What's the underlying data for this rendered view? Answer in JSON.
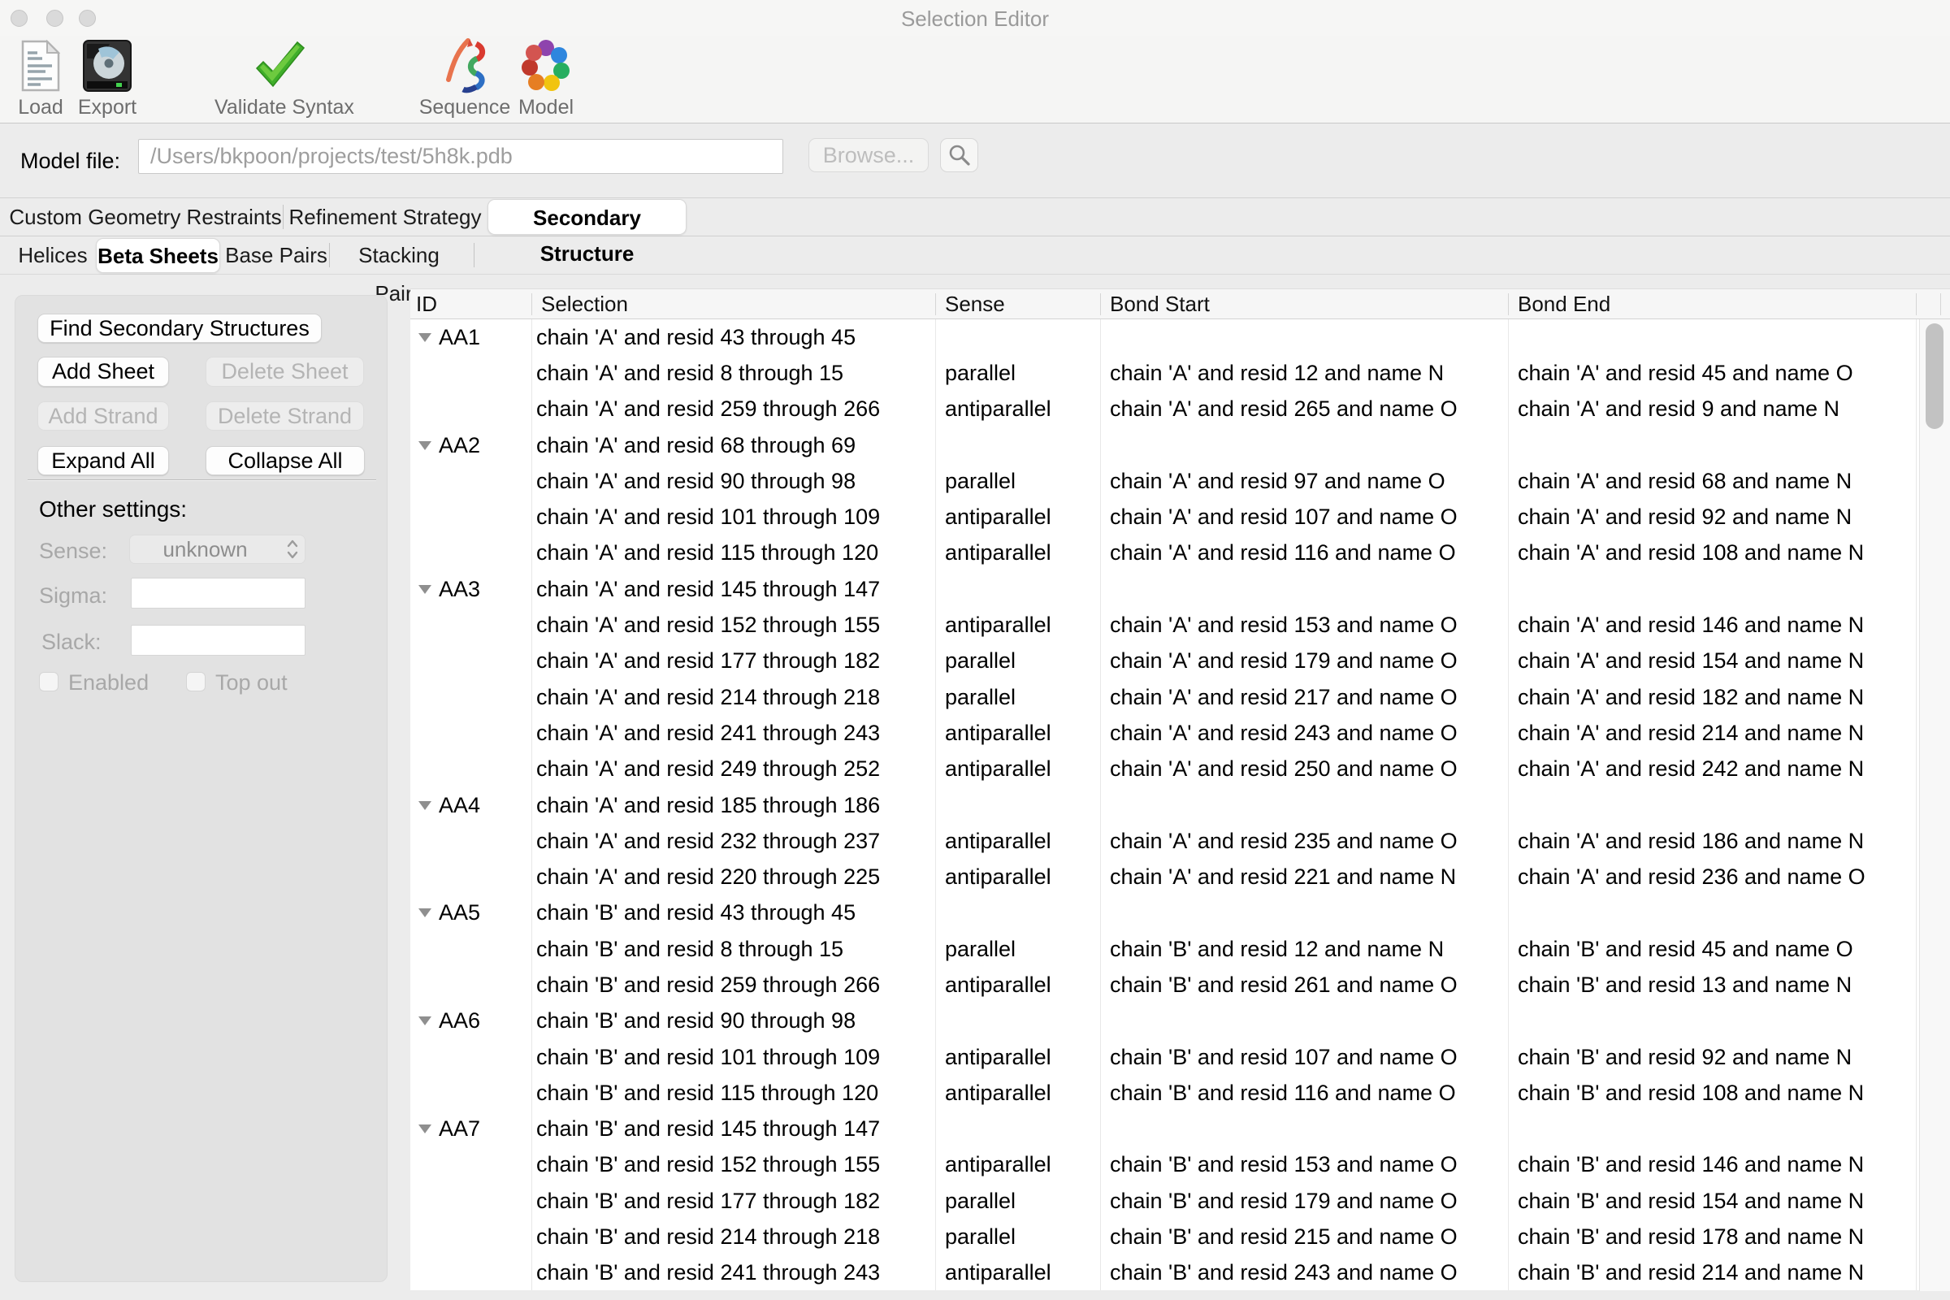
{
  "window": {
    "title": "Selection Editor"
  },
  "toolbar": {
    "items": [
      {
        "label": "Load",
        "icon": "document-icon"
      },
      {
        "label": "Export",
        "icon": "hard-drive-icon"
      },
      {
        "label": "Validate Syntax",
        "icon": "green-checkmark-icon"
      },
      {
        "label": "Sequence",
        "icon": "sequence-ribbon-icon"
      },
      {
        "label": "Model",
        "icon": "model-cluster-icon"
      }
    ]
  },
  "model_file": {
    "label": "Model file:",
    "value": "/Users/bkpoon/projects/test/5h8k.pdb",
    "browse_label": "Browse..."
  },
  "tabs": {
    "items": [
      "Custom Geometry Restraints",
      "Refinement Strategy",
      "Secondary Structure"
    ],
    "selected": "Secondary Structure"
  },
  "subtabs": {
    "items": [
      "Helices",
      "Beta Sheets",
      "Base Pairs",
      "Stacking Pairs"
    ],
    "selected": "Beta Sheets"
  },
  "sidebar": {
    "buttons": [
      {
        "label": "Find Secondary Structures",
        "enabled": true
      },
      {
        "label": "Add Sheet",
        "enabled": true
      },
      {
        "label": "Delete Sheet",
        "enabled": false
      },
      {
        "label": "Add Strand",
        "enabled": false
      },
      {
        "label": "Delete Strand",
        "enabled": false
      },
      {
        "label": "Expand All",
        "enabled": true
      },
      {
        "label": "Collapse All",
        "enabled": true
      }
    ],
    "other_settings": {
      "heading": "Other settings:",
      "sense": {
        "label": "Sense:",
        "value": "unknown"
      },
      "sigma": {
        "label": "Sigma:",
        "value": ""
      },
      "slack": {
        "label": "Slack:",
        "value": ""
      },
      "enabled_checkbox": {
        "label": "Enabled",
        "checked": false
      },
      "top_out_checkbox": {
        "label": "Top out",
        "checked": false
      }
    }
  },
  "table": {
    "columns": [
      "ID",
      "Selection",
      "Sense",
      "Bond Start",
      "Bond End"
    ],
    "rows": [
      {
        "id": "AA1",
        "selection": "chain 'A' and resid 43 through 45",
        "sense": "",
        "bond_start": "",
        "bond_end": ""
      },
      {
        "id": "",
        "selection": "chain 'A' and resid 8 through 15",
        "sense": "parallel",
        "bond_start": "chain 'A' and resid 12 and name N",
        "bond_end": "chain 'A' and resid 45 and name O"
      },
      {
        "id": "",
        "selection": "chain 'A' and resid 259 through 266",
        "sense": "antiparallel",
        "bond_start": "chain 'A' and resid 265 and name O",
        "bond_end": "chain 'A' and resid 9 and name N"
      },
      {
        "id": "AA2",
        "selection": "chain 'A' and resid 68 through 69",
        "sense": "",
        "bond_start": "",
        "bond_end": ""
      },
      {
        "id": "",
        "selection": "chain 'A' and resid 90 through 98",
        "sense": "parallel",
        "bond_start": "chain 'A' and resid 97 and name O",
        "bond_end": "chain 'A' and resid 68 and name N"
      },
      {
        "id": "",
        "selection": "chain 'A' and resid 101 through 109",
        "sense": "antiparallel",
        "bond_start": "chain 'A' and resid 107 and name O",
        "bond_end": "chain 'A' and resid 92 and name N"
      },
      {
        "id": "",
        "selection": "chain 'A' and resid 115 through 120",
        "sense": "antiparallel",
        "bond_start": "chain 'A' and resid 116 and name O",
        "bond_end": "chain 'A' and resid 108 and name N"
      },
      {
        "id": "AA3",
        "selection": "chain 'A' and resid 145 through 147",
        "sense": "",
        "bond_start": "",
        "bond_end": ""
      },
      {
        "id": "",
        "selection": "chain 'A' and resid 152 through 155",
        "sense": "antiparallel",
        "bond_start": "chain 'A' and resid 153 and name O",
        "bond_end": "chain 'A' and resid 146 and name N"
      },
      {
        "id": "",
        "selection": "chain 'A' and resid 177 through 182",
        "sense": "parallel",
        "bond_start": "chain 'A' and resid 179 and name O",
        "bond_end": "chain 'A' and resid 154 and name N"
      },
      {
        "id": "",
        "selection": "chain 'A' and resid 214 through 218",
        "sense": "parallel",
        "bond_start": "chain 'A' and resid 217 and name O",
        "bond_end": "chain 'A' and resid 182 and name N"
      },
      {
        "id": "",
        "selection": "chain 'A' and resid 241 through 243",
        "sense": "antiparallel",
        "bond_start": "chain 'A' and resid 243 and name O",
        "bond_end": "chain 'A' and resid 214 and name N"
      },
      {
        "id": "",
        "selection": "chain 'A' and resid 249 through 252",
        "sense": "antiparallel",
        "bond_start": "chain 'A' and resid 250 and name O",
        "bond_end": "chain 'A' and resid 242 and name N"
      },
      {
        "id": "AA4",
        "selection": "chain 'A' and resid 185 through 186",
        "sense": "",
        "bond_start": "",
        "bond_end": ""
      },
      {
        "id": "",
        "selection": "chain 'A' and resid 232 through 237",
        "sense": "antiparallel",
        "bond_start": "chain 'A' and resid 235 and name O",
        "bond_end": "chain 'A' and resid 186 and name N"
      },
      {
        "id": "",
        "selection": "chain 'A' and resid 220 through 225",
        "sense": "antiparallel",
        "bond_start": "chain 'A' and resid 221 and name N",
        "bond_end": "chain 'A' and resid 236 and name O"
      },
      {
        "id": "AA5",
        "selection": "chain 'B' and resid 43 through 45",
        "sense": "",
        "bond_start": "",
        "bond_end": ""
      },
      {
        "id": "",
        "selection": "chain 'B' and resid 8 through 15",
        "sense": "parallel",
        "bond_start": "chain 'B' and resid 12 and name N",
        "bond_end": "chain 'B' and resid 45 and name O"
      },
      {
        "id": "",
        "selection": "chain 'B' and resid 259 through 266",
        "sense": "antiparallel",
        "bond_start": "chain 'B' and resid 261 and name O",
        "bond_end": "chain 'B' and resid 13 and name N"
      },
      {
        "id": "AA6",
        "selection": "chain 'B' and resid 90 through 98",
        "sense": "",
        "bond_start": "",
        "bond_end": ""
      },
      {
        "id": "",
        "selection": "chain 'B' and resid 101 through 109",
        "sense": "antiparallel",
        "bond_start": "chain 'B' and resid 107 and name O",
        "bond_end": "chain 'B' and resid 92 and name N"
      },
      {
        "id": "",
        "selection": "chain 'B' and resid 115 through 120",
        "sense": "antiparallel",
        "bond_start": "chain 'B' and resid 116 and name O",
        "bond_end": "chain 'B' and resid 108 and name N"
      },
      {
        "id": "AA7",
        "selection": "chain 'B' and resid 145 through 147",
        "sense": "",
        "bond_start": "",
        "bond_end": ""
      },
      {
        "id": "",
        "selection": "chain 'B' and resid 152 through 155",
        "sense": "antiparallel",
        "bond_start": "chain 'B' and resid 153 and name O",
        "bond_end": "chain 'B' and resid 146 and name N"
      },
      {
        "id": "",
        "selection": "chain 'B' and resid 177 through 182",
        "sense": "parallel",
        "bond_start": "chain 'B' and resid 179 and name O",
        "bond_end": "chain 'B' and resid 154 and name N"
      },
      {
        "id": "",
        "selection": "chain 'B' and resid 214 through 218",
        "sense": "parallel",
        "bond_start": "chain 'B' and resid 215 and name O",
        "bond_end": "chain 'B' and resid 178 and name N"
      },
      {
        "id": "",
        "selection": "chain 'B' and resid 241 through 243",
        "sense": "antiparallel",
        "bond_start": "chain 'B' and resid 243 and name O",
        "bond_end": "chain 'B' and resid 214 and name N"
      }
    ]
  },
  "colors": {
    "window_bg": "#ececec",
    "titlebar_bg": "#f6f6f5",
    "panel_bg": "#e2e2e2",
    "accent_check_green": "#3fae2a",
    "disabled_text": "#b4b4b4",
    "scroll_thumb": "#c2c2c2"
  }
}
